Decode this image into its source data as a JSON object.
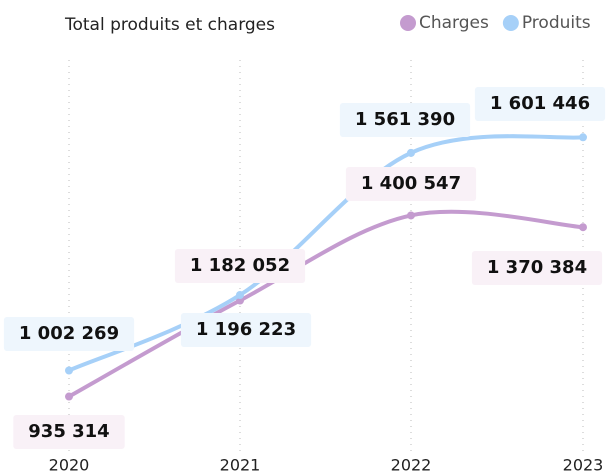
{
  "chart_data": {
    "type": "line",
    "title": "Total produits et charges",
    "categories": [
      "2020",
      "2021",
      "2022",
      "2023"
    ],
    "series": [
      {
        "name": "Charges",
        "color": "#c49bcf",
        "values": [
          935314,
          1182052,
          1400547,
          1370384
        ],
        "value_labels": [
          "935 314",
          "1 182 052",
          "1 400 547",
          "1 370 384"
        ]
      },
      {
        "name": "Produits",
        "color": "#a6d0f8",
        "values": [
          1002269,
          1196223,
          1561390,
          1601446
        ],
        "value_labels": [
          "1 002 269",
          "1 196 223",
          "1 561 390",
          "1 601 446"
        ]
      }
    ],
    "ylim": [
      780000,
      1800000
    ],
    "grid": true,
    "legend": "top-right"
  }
}
